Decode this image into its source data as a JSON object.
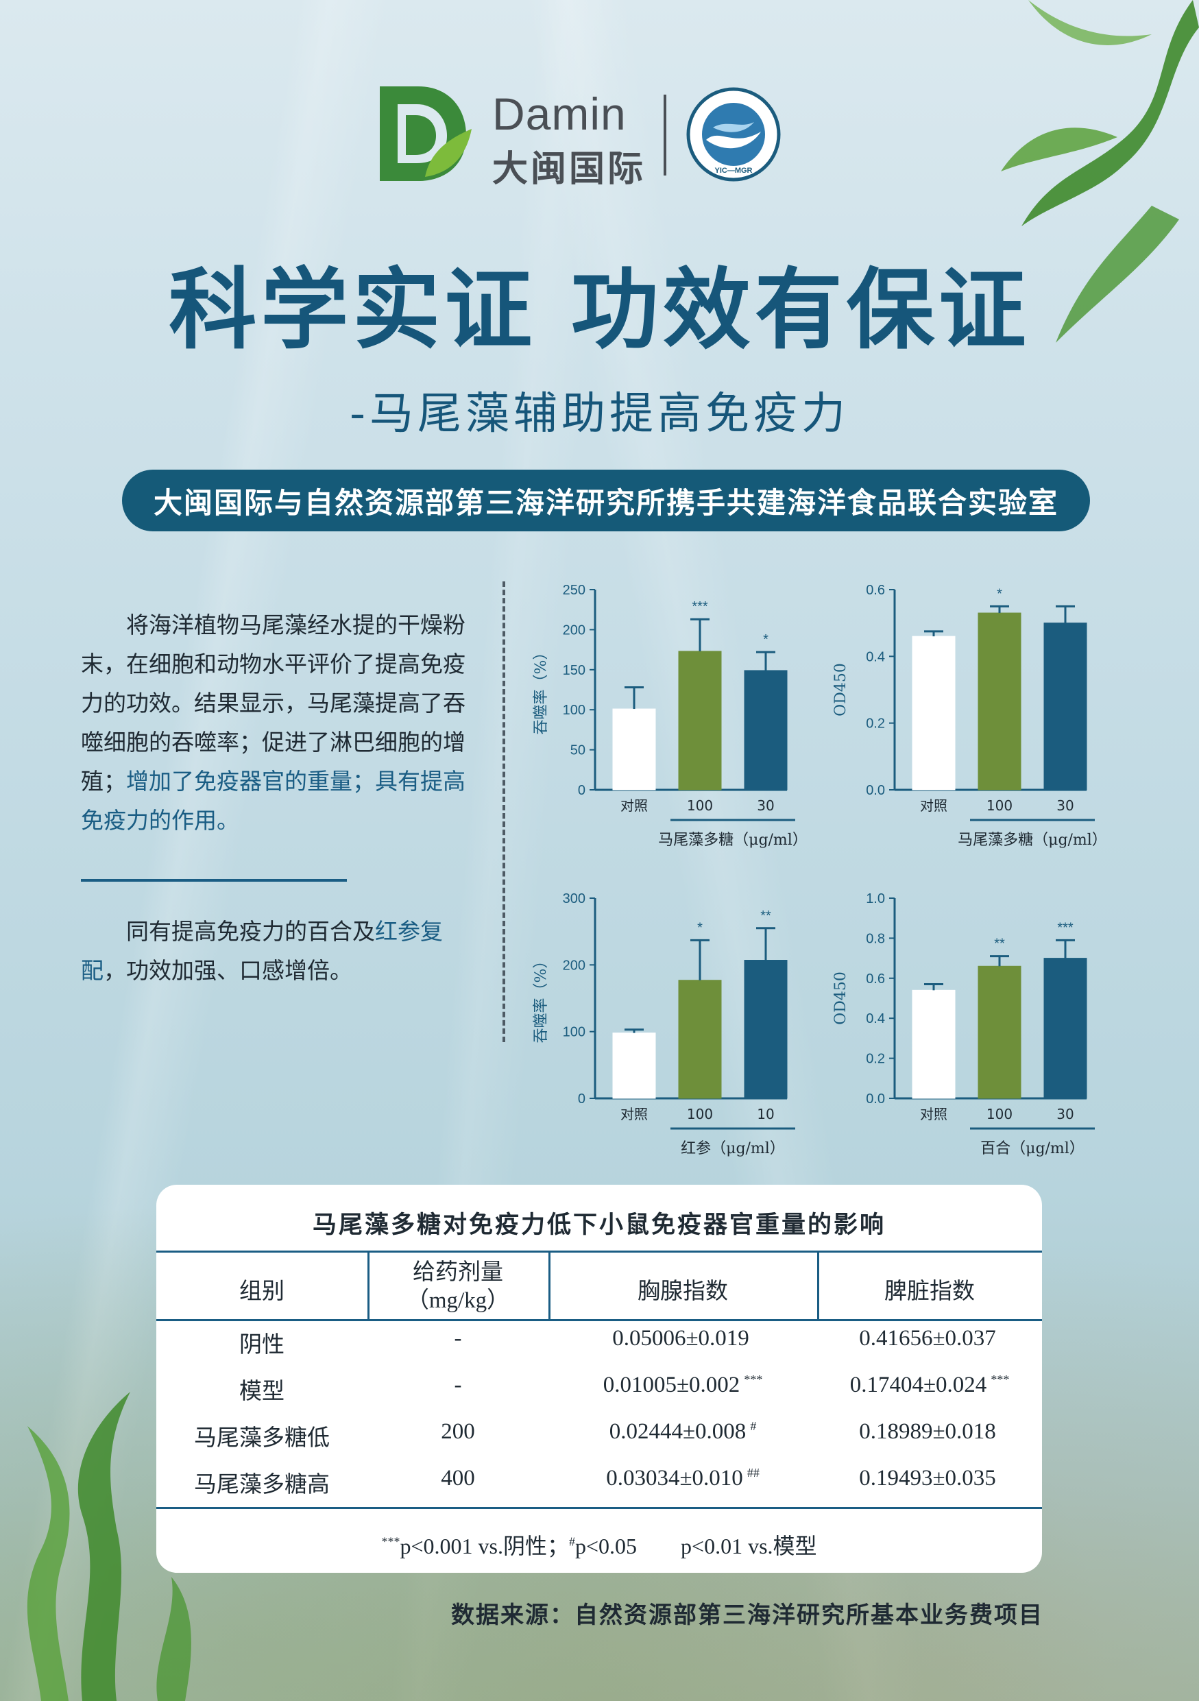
{
  "header": {
    "brand_en": "Damin",
    "brand_zh": "大闽国际",
    "seal_text": "YIC—MGR"
  },
  "title": "科学实证 功效有保证",
  "subtitle": "-马尾藻辅助提高免疫力",
  "banner": "大闽国际与自然资源部第三海洋研究所携手共建海洋食品联合实验室",
  "left": {
    "para1_plain": "将海洋植物马尾藻经水提的干燥粉末，在细胞和动物水平评价了提高免疫力的功效。结果显示，马尾藻提高了吞噬细胞的吞噬率；促进了淋巴细胞的增殖；",
    "para1_highlight": "增加了免疫器官的重量；具有提高免疫力的作用。",
    "para2_plain1": "同有提高免疫力的百合及",
    "para2_highlight": "红参复配",
    "para2_plain2": "，功效加强、口感增倍。"
  },
  "chart_data": [
    {
      "type": "bar",
      "ylabel": "吞噬率（%）",
      "xlabel": "马尾藻多糖（μg/ml）",
      "ylim": [
        0,
        250
      ],
      "yticks": [
        "0",
        "50",
        "100",
        "150",
        "200",
        "250"
      ],
      "categories": [
        "对照",
        "100",
        "30"
      ],
      "values": [
        101,
        173,
        149
      ],
      "errors": [
        27,
        40,
        23
      ],
      "significance": [
        "",
        "***",
        "*"
      ],
      "colors": [
        "#ffffff",
        "#6e8f3a",
        "#1b5c7e"
      ]
    },
    {
      "type": "bar",
      "ylabel": "OD450",
      "xlabel": "马尾藻多糖（μg/ml）",
      "ylim": [
        0,
        0.6
      ],
      "yticks": [
        "0.0",
        "0.2",
        "0.4",
        "0.6"
      ],
      "categories": [
        "对照",
        "100",
        "30"
      ],
      "values": [
        0.46,
        0.53,
        0.5
      ],
      "errors": [
        0.015,
        0.02,
        0.05
      ],
      "significance": [
        "",
        "*",
        ""
      ],
      "colors": [
        "#ffffff",
        "#6e8f3a",
        "#1b5c7e"
      ]
    },
    {
      "type": "bar",
      "ylabel": "吞噬率（%）",
      "xlabel": "红参（μg/ml）",
      "ylim": [
        0,
        300
      ],
      "yticks": [
        "0",
        "100",
        "200",
        "300"
      ],
      "categories": [
        "对照",
        "100",
        "10"
      ],
      "values": [
        98,
        177,
        207
      ],
      "errors": [
        5,
        60,
        48
      ],
      "significance": [
        "",
        "*",
        "**"
      ],
      "colors": [
        "#ffffff",
        "#6e8f3a",
        "#1b5c7e"
      ]
    },
    {
      "type": "bar",
      "ylabel": "OD450",
      "xlabel": "百合（μg/ml）",
      "ylim": [
        0,
        1.0
      ],
      "yticks": [
        "0.0",
        "0.2",
        "0.4",
        "0.6",
        "0.8",
        "1.0"
      ],
      "categories": [
        "对照",
        "100",
        "30"
      ],
      "values": [
        0.54,
        0.66,
        0.7
      ],
      "errors": [
        0.03,
        0.05,
        0.09
      ],
      "significance": [
        "",
        "**",
        "***"
      ],
      "colors": [
        "#ffffff",
        "#6e8f3a",
        "#1b5c7e"
      ]
    }
  ],
  "table": {
    "title": "马尾藻多糖对免疫力低下小鼠免疫器官重量的影响",
    "headers": [
      "组别",
      "给药剂量",
      "（mg/kg）",
      "胸腺指数",
      "脾脏指数"
    ],
    "rows": [
      {
        "group": "阴性",
        "dose": "-",
        "thymus": "0.05006±0.019",
        "thymus_sig": "",
        "spleen": "0.41656±0.037",
        "spleen_sig": ""
      },
      {
        "group": "模型",
        "dose": "-",
        "thymus": "0.01005±0.002",
        "thymus_sig": "***",
        "spleen": "0.17404±0.024",
        "spleen_sig": "***"
      },
      {
        "group": "马尾藻多糖低",
        "dose": "200",
        "thymus": "0.02444±0.008",
        "thymus_sig": "#",
        "spleen": "0.18989±0.018",
        "spleen_sig": ""
      },
      {
        "group": "马尾藻多糖高",
        "dose": "400",
        "thymus": "0.03034±0.010",
        "thymus_sig": "##",
        "spleen": "0.19493±0.035",
        "spleen_sig": ""
      }
    ],
    "footnote_sup1": "***",
    "footnote_a": "p<0.001 vs.阴性；",
    "footnote_sup2": "#",
    "footnote_b": "p<0.05",
    "footnote_c": "p<0.01 vs.模型"
  },
  "source": "数据来源：自然资源部第三海洋研究所基本业务费项目"
}
